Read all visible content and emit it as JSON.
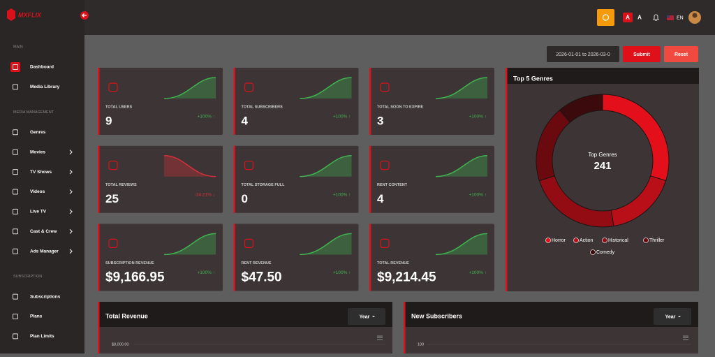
{
  "header": {
    "logo": "MXFLIX",
    "font_small": "A",
    "font_large": "A",
    "language": "EN"
  },
  "sidebar": {
    "sections": [
      {
        "title": "MAIN",
        "items": [
          {
            "label": "Dashboard",
            "active": true
          },
          {
            "label": "Media Library"
          }
        ]
      },
      {
        "title": "MEDIA MANAGEMENT",
        "items": [
          {
            "label": "Genres"
          },
          {
            "label": "Movies",
            "has_submenu": true
          },
          {
            "label": "TV Shows",
            "has_submenu": true
          },
          {
            "label": "Videos",
            "has_submenu": true
          },
          {
            "label": "Live TV",
            "has_submenu": true
          },
          {
            "label": "Cast & Crew",
            "has_submenu": true
          },
          {
            "label": "Ads Manager",
            "has_submenu": true
          }
        ]
      },
      {
        "title": "SUBSCRIPTION",
        "items": [
          {
            "label": "Subscriptions"
          },
          {
            "label": "Plans"
          },
          {
            "label": "Plan Limits"
          }
        ]
      }
    ]
  },
  "filters": {
    "date_range": "2026-01-01 to 2026-03-0",
    "submit": "Submit",
    "reset": "Reset"
  },
  "stats": [
    {
      "label": "TOTAL USERS",
      "value": "9",
      "change": "+100% ↑",
      "trend": "up"
    },
    {
      "label": "TOTAL SUBSCRIBERS",
      "value": "4",
      "change": "+100% ↑",
      "trend": "up"
    },
    {
      "label": "TOTAL SOON TO EXPIRE",
      "value": "3",
      "change": "+100% ↑",
      "trend": "up"
    },
    {
      "label": "TOTAL REVIEWS",
      "value": "25",
      "change": "-34.21% ↓",
      "trend": "down"
    },
    {
      "label": "TOTAL STORAGE FULL",
      "value": "0",
      "change": "+100% ↑",
      "trend": "up"
    },
    {
      "label": "RENT CONTENT",
      "value": "4",
      "change": "+100% ↑",
      "trend": "up"
    },
    {
      "label": "SUBSCRIPTION REVENUE",
      "value": "$9,166.95",
      "change": "+100% ↑",
      "trend": "up"
    },
    {
      "label": "RENT REVENUE",
      "value": "$47.50",
      "change": "+100% ↑",
      "trend": "up"
    },
    {
      "label": "TOTAL REVENUE",
      "value": "$9,214.45",
      "change": "+100% ↑",
      "trend": "up"
    }
  ],
  "genres_chart": {
    "type": "pie",
    "title": "Top 5 Genres",
    "center_label": "Top Genres",
    "center_value": 241,
    "categories": [
      "Horror",
      "Action",
      "Historical",
      "Thriller",
      "Comedy"
    ],
    "values": [
      72,
      42,
      55,
      45,
      27
    ],
    "colors": [
      "#e3101b",
      "#b90f18",
      "#940c13",
      "#6a0a0e",
      "#3a0a0c"
    ]
  },
  "revenue_panel": {
    "title": "Total Revenue",
    "filter": "Year",
    "yticks": [
      {
        "value": 8000,
        "label": "$8,000.00"
      }
    ]
  },
  "subscribers_panel": {
    "title": "New Subscribers",
    "filter": "Year",
    "yticks": [
      100
    ]
  }
}
